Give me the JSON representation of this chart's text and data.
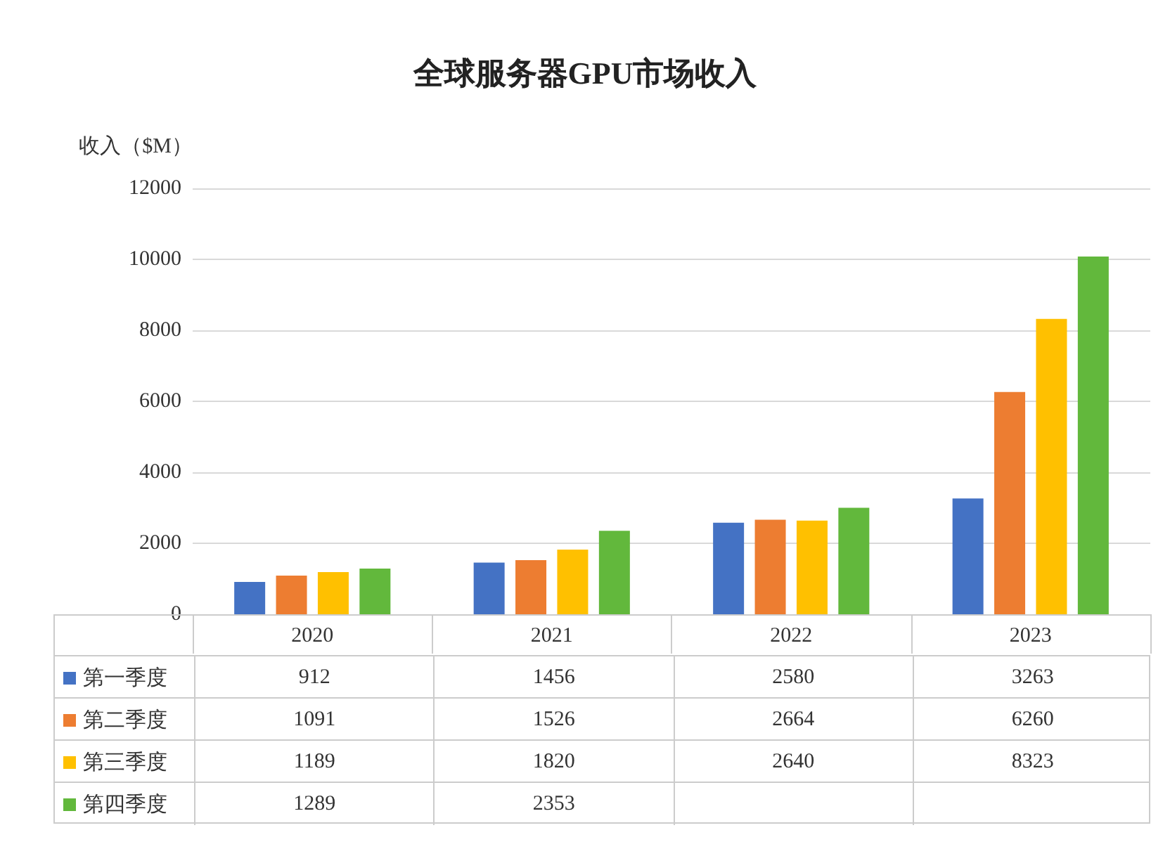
{
  "chart_data": {
    "type": "bar",
    "title": "全球服务器GPU市场收入",
    "ylabel": "收入（$M）",
    "categories": [
      "2020",
      "2021",
      "2022",
      "2023"
    ],
    "series": [
      {
        "name": "第一季度",
        "color": "#4472c4",
        "values": [
          912,
          1456,
          2580,
          3263
        ],
        "value_labels": [
          "912",
          "1456",
          "2580",
          "3263"
        ]
      },
      {
        "name": "第二季度",
        "color": "#ed7d31",
        "values": [
          1091,
          1526,
          2664,
          6260
        ],
        "value_labels": [
          "1091",
          "1526",
          "2664",
          "6260"
        ]
      },
      {
        "name": "第三季度",
        "color": "#ffc000",
        "values": [
          1189,
          1820,
          2640,
          8323
        ],
        "value_labels": [
          "1189",
          "1820",
          "2640",
          "8323"
        ]
      },
      {
        "name": "第四季度",
        "color": "#62b83c",
        "values": [
          1289,
          2353,
          3000,
          10080
        ],
        "value_labels": [
          "1289",
          "2353",
          null,
          null
        ]
      }
    ],
    "ylim": [
      0,
      12000
    ],
    "yticks": [
      0,
      2000,
      4000,
      6000,
      8000,
      10000,
      12000
    ],
    "grid": "y",
    "legend": "bottom"
  }
}
